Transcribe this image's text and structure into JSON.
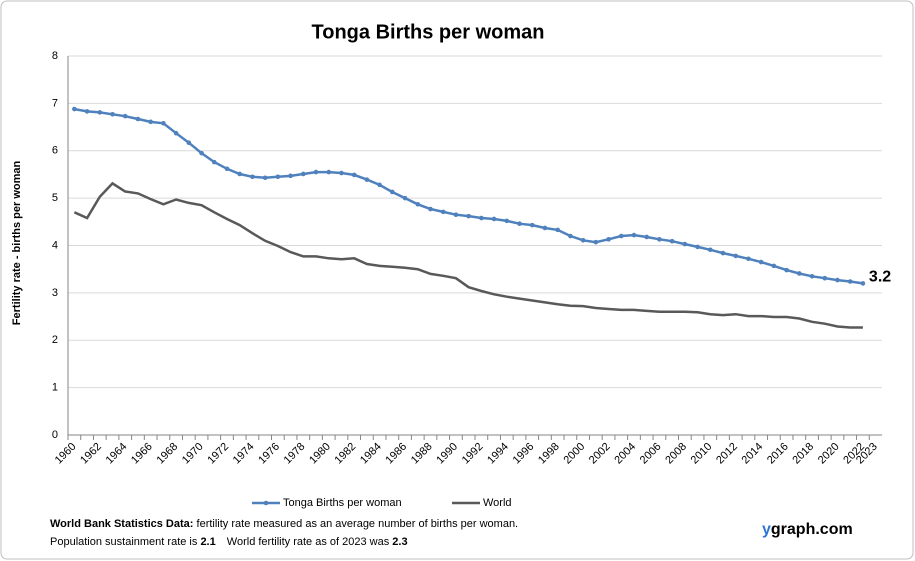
{
  "chart_data": {
    "type": "line",
    "title": "Tonga Births per woman",
    "y_label": "Fertility rate  - births per woman",
    "categories": [
      "1960",
      null,
      "1962",
      null,
      "1964",
      null,
      "1966",
      null,
      "1968",
      null,
      "1970",
      null,
      "1972",
      null,
      "1974",
      null,
      "1976",
      null,
      "1978",
      null,
      "1980",
      null,
      "1982",
      null,
      "1984",
      null,
      "1986",
      null,
      "1988",
      null,
      "1990",
      null,
      "1992",
      null,
      "1994",
      null,
      "1996",
      null,
      "1998",
      null,
      "2000",
      null,
      "2002",
      null,
      "2004",
      null,
      "2006",
      null,
      "2008",
      null,
      "2010",
      null,
      "2012",
      null,
      "2014",
      null,
      "2016",
      null,
      "2018",
      null,
      "2020",
      null,
      "2022",
      "2023"
    ],
    "series": [
      {
        "name": "Tonga Births per woman",
        "color": "#4f81bd",
        "markers": true,
        "values": [
          6.88,
          6.83,
          6.81,
          6.77,
          6.73,
          6.67,
          6.61,
          6.58,
          6.37,
          6.17,
          5.95,
          5.76,
          5.62,
          5.51,
          5.45,
          5.43,
          5.45,
          5.47,
          5.51,
          5.55,
          5.55,
          5.53,
          5.49,
          5.39,
          5.28,
          5.13,
          5.0,
          4.87,
          4.77,
          4.71,
          4.65,
          4.62,
          4.58,
          4.56,
          4.52,
          4.46,
          4.43,
          4.37,
          4.33,
          4.2,
          4.11,
          4.07,
          4.13,
          4.2,
          4.22,
          4.18,
          4.13,
          4.09,
          4.03,
          3.97,
          3.91,
          3.84,
          3.78,
          3.72,
          3.65,
          3.57,
          3.48,
          3.41,
          3.35,
          3.31,
          3.27,
          3.24,
          3.2,
          null
        ],
        "value_labels": [
          null,
          null,
          null,
          null,
          null,
          null,
          null,
          null,
          null,
          null,
          null,
          null,
          null,
          null,
          null,
          null,
          null,
          null,
          null,
          null,
          null,
          null,
          null,
          null,
          null,
          null,
          null,
          null,
          null,
          null,
          null,
          null,
          null,
          null,
          null,
          null,
          null,
          null,
          null,
          null,
          null,
          null,
          null,
          null,
          null,
          null,
          null,
          null,
          null,
          null,
          null,
          null,
          null,
          null,
          null,
          null,
          null,
          null,
          null,
          null,
          null,
          null,
          "3.2",
          null
        ]
      },
      {
        "name": "World",
        "color": "#595959",
        "markers": false,
        "values": [
          4.7,
          4.58,
          5.03,
          5.31,
          5.14,
          5.1,
          4.98,
          4.87,
          4.97,
          4.9,
          4.85,
          4.7,
          4.56,
          4.43,
          4.26,
          4.1,
          3.99,
          3.86,
          3.77,
          3.77,
          3.73,
          3.71,
          3.73,
          3.61,
          3.57,
          3.55,
          3.53,
          3.5,
          3.4,
          3.36,
          3.31,
          3.12,
          3.04,
          2.97,
          2.92,
          2.88,
          2.84,
          2.8,
          2.76,
          2.73,
          2.72,
          2.68,
          2.66,
          2.64,
          2.64,
          2.62,
          2.6,
          2.6,
          2.6,
          2.59,
          2.55,
          2.53,
          2.55,
          2.51,
          2.51,
          2.49,
          2.49,
          2.46,
          2.39,
          2.35,
          2.29,
          2.27,
          2.27,
          null
        ]
      }
    ],
    "ylim": [
      0,
      8
    ],
    "yticks": [
      0,
      1,
      2,
      3,
      4,
      5,
      6,
      7,
      8
    ],
    "grid": true,
    "legend": "bottom"
  },
  "footer": {
    "line1_bold": "World Bank Statistics Data:",
    "line1": "fertility rate measured as an average number  of births per woman.",
    "line2_a": "Population sustainment rate is",
    "line2_b": "2.1",
    "line2_c": "World fertility rate as of 2023 was",
    "line2_d": "2.3",
    "brand_y": "y",
    "brand_rest": "graph.com"
  }
}
